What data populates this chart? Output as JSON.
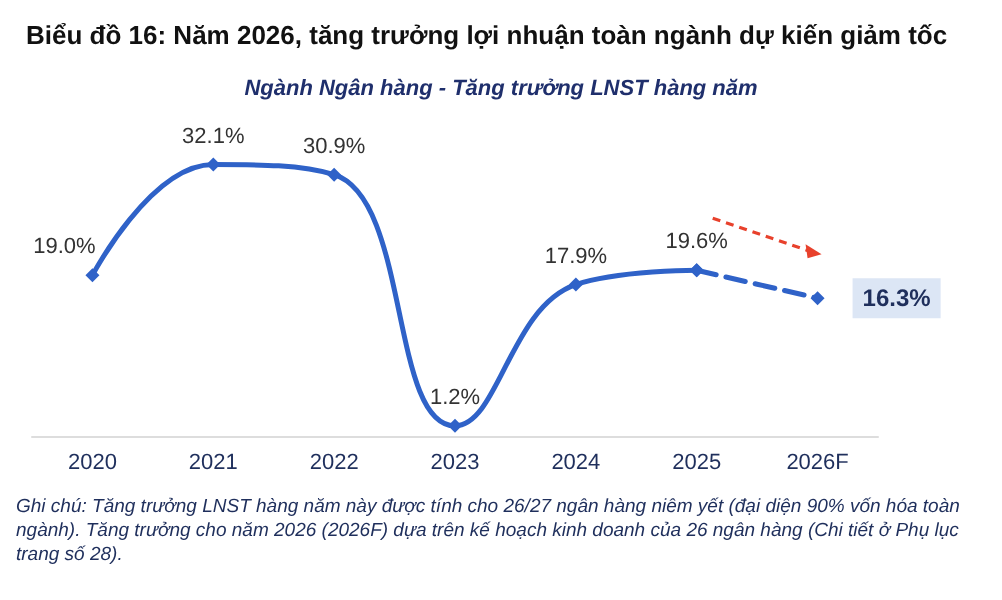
{
  "chart_data": {
    "type": "line",
    "title": "Biểu đồ 16: Năm 2026, tăng trưởng lợi nhuận toàn ngành dự kiến giảm tốc",
    "subtitle": "Ngành Ngân hàng - Tăng trưởng LNST hàng năm",
    "categories": [
      "2020",
      "2021",
      "2022",
      "2023",
      "2024",
      "2025",
      "2026F"
    ],
    "series": [
      {
        "color": "#2f62c8",
        "line_style": "solid",
        "values": [
          19.0,
          32.1,
          30.9,
          1.2,
          17.9,
          19.6,
          null
        ],
        "value_labels": [
          "19.0%",
          "32.1%",
          "30.9%",
          "1.2%",
          "17.9%",
          "19.6%",
          null
        ]
      },
      {
        "color": "#2f62c8",
        "line_style": "dashed",
        "values": [
          null,
          null,
          null,
          null,
          null,
          19.6,
          16.3
        ],
        "value_labels": [
          null,
          null,
          null,
          null,
          null,
          null,
          "16.3%"
        ]
      }
    ],
    "marker": "diamond",
    "grid": false,
    "annotations": [
      "Ghi chú: Tăng trưởng LNST hàng năm này được tính cho 26/27 ngân hàng niêm yết (đại diện 90% vốn hóa toàn ngành). Tăng trưởng cho năm 2026 (2026F) dựa trên kế hoạch kinh doanh của 26 ngân hàng (Chi tiết ở Phụ lục trang số 28)."
    ]
  }
}
